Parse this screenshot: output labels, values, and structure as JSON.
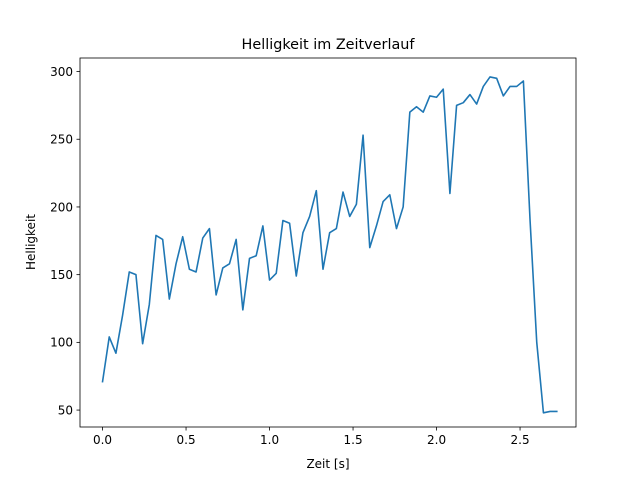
{
  "chart_data": {
    "type": "line",
    "title": "Helligkeit im Zeitverlauf",
    "xlabel": "Zeit [s]",
    "ylabel": "Helligkeit",
    "xlim": [
      -0.135,
      2.835
    ],
    "ylim": [
      37.5,
      310
    ],
    "xticks": [
      0.0,
      0.5,
      1.0,
      1.5,
      2.0,
      2.5
    ],
    "xtick_labels": [
      "0.0",
      "0.5",
      "1.0",
      "1.5",
      "2.0",
      "2.5"
    ],
    "yticks": [
      50,
      100,
      150,
      200,
      250,
      300
    ],
    "ytick_labels": [
      "50",
      "100",
      "150",
      "200",
      "250",
      "300"
    ],
    "grid": false,
    "line_color": "#1f77b4",
    "series": [
      {
        "x": [
          0.0,
          0.04,
          0.08,
          0.12,
          0.16,
          0.2,
          0.24,
          0.28,
          0.32,
          0.36,
          0.4,
          0.44,
          0.48,
          0.52,
          0.56,
          0.6,
          0.64,
          0.68,
          0.72,
          0.76,
          0.8,
          0.84,
          0.88,
          0.92,
          0.96,
          1.0,
          1.04,
          1.08,
          1.12,
          1.16,
          1.2,
          1.24,
          1.28,
          1.32,
          1.36,
          1.4,
          1.44,
          1.48,
          1.52,
          1.56,
          1.6,
          1.64,
          1.68,
          1.72,
          1.76,
          1.8,
          1.84,
          1.88,
          1.92,
          1.96,
          2.0,
          2.04,
          2.08,
          2.12,
          2.16,
          2.2,
          2.24,
          2.28,
          2.32,
          2.36,
          2.4,
          2.44,
          2.48,
          2.52,
          2.56,
          2.6,
          2.64,
          2.68,
          2.72
        ],
        "values": [
          71,
          104,
          92,
          120,
          152,
          150,
          99,
          128,
          179,
          176,
          132,
          158,
          178,
          154,
          152,
          177,
          184,
          135,
          155,
          158,
          176,
          124,
          162,
          164,
          186,
          146,
          151,
          190,
          188,
          149,
          181,
          193,
          212,
          154,
          181,
          184,
          211,
          193,
          202,
          253,
          170,
          186,
          204,
          209,
          184,
          200,
          270,
          274,
          270,
          282,
          281,
          287,
          210,
          275,
          277,
          283,
          276,
          289,
          296,
          295,
          282,
          289,
          289,
          293,
          190,
          100,
          48,
          49,
          49
        ]
      }
    ]
  }
}
